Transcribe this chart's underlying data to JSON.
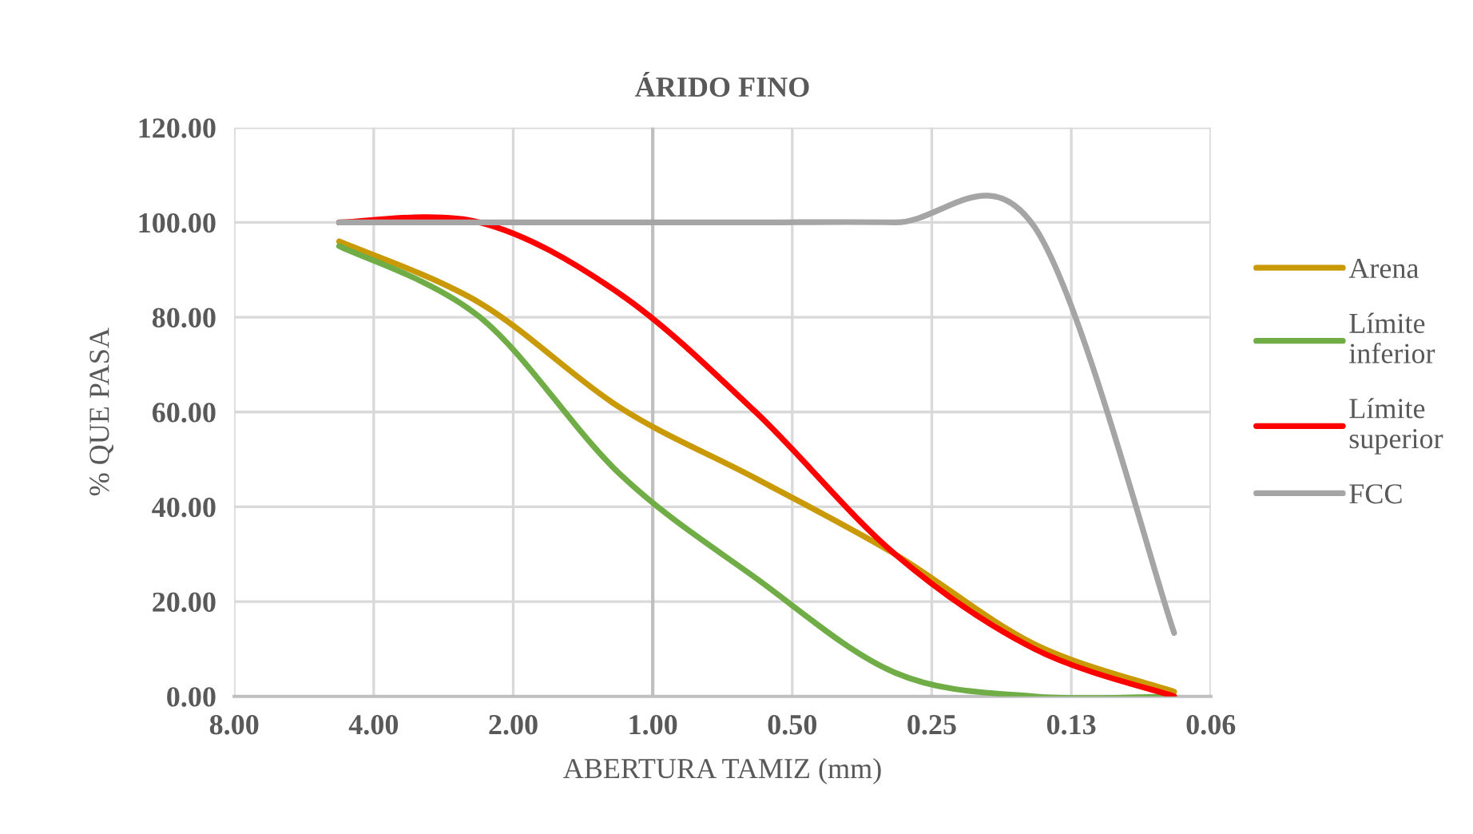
{
  "chart_data": {
    "type": "line",
    "title": "ÁRIDO FINO",
    "xlabel": "ABERTURA TAMIZ (mm)",
    "ylabel": "% QUE PASA",
    "x": [
      4.75,
      2.36,
      1.18,
      0.6,
      0.3,
      0.15,
      0.075
    ],
    "series": [
      {
        "name": "Arena",
        "color": "#c99a06",
        "values": [
          96,
          83,
          61,
          46,
          30,
          11,
          1
        ]
      },
      {
        "name": "Límite inferior",
        "color": "#70ad47",
        "values": [
          95,
          80,
          47,
          25,
          5,
          0,
          0
        ]
      },
      {
        "name": "Límite superior",
        "color": "#ff0000",
        "values": [
          100,
          100,
          85,
          60,
          30,
          10,
          0
        ]
      },
      {
        "name": "FCC",
        "color": "#a5a5a5",
        "values": [
          100,
          100,
          100,
          100,
          100,
          99,
          13.4
        ]
      }
    ],
    "log": "x",
    "xlim": [
      8,
      0.0625
    ],
    "xticks": [
      {
        "value": 8,
        "label": "8.00"
      },
      {
        "value": 4,
        "label": "4.00"
      },
      {
        "value": 2,
        "label": "2.00"
      },
      {
        "value": 1,
        "label": "1.00"
      },
      {
        "value": 0.5,
        "label": "0.50"
      },
      {
        "value": 0.25,
        "label": "0.25"
      },
      {
        "value": 0.125,
        "label": "0.13"
      },
      {
        "value": 0.0625,
        "label": "0.06"
      }
    ],
    "ylim": [
      0,
      120
    ],
    "yticks": [
      {
        "value": 0,
        "label": "0.00"
      },
      {
        "value": 20,
        "label": "20.00"
      },
      {
        "value": 40,
        "label": "40.00"
      },
      {
        "value": 60,
        "label": "60.00"
      },
      {
        "value": 80,
        "label": "80.00"
      },
      {
        "value": 100,
        "label": "100.00"
      },
      {
        "value": 120,
        "label": "120.00"
      }
    ],
    "ref_lines": [
      {
        "axis": "x",
        "value": 1,
        "color": "#bfbfbf"
      }
    ],
    "grid": true,
    "legend": "right",
    "marker": "none",
    "line_style": "solid"
  }
}
